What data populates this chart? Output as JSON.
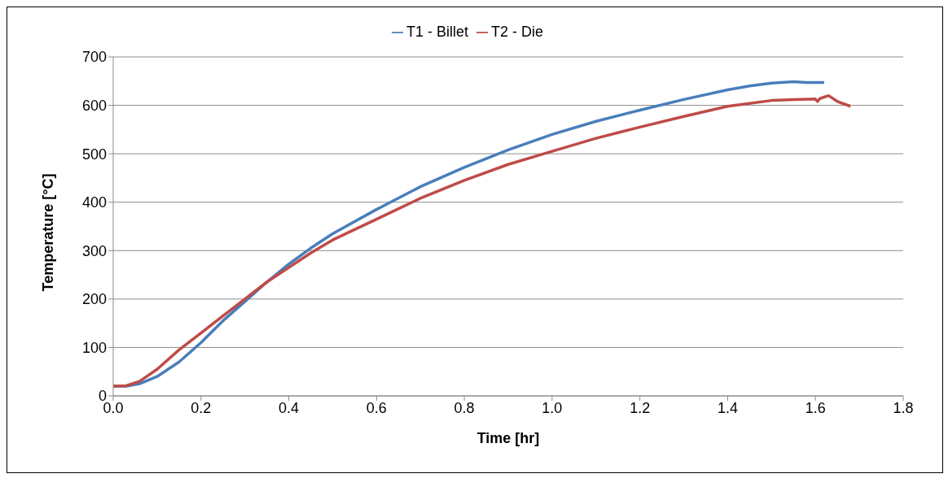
{
  "chart_data": {
    "type": "line",
    "xlabel": "Time [hr]",
    "ylabel": "Temperature [°C]",
    "xlim": [
      0,
      1.8
    ],
    "xticks": [
      {
        "value": 0,
        "label": "0.0"
      },
      {
        "value": 0.2,
        "label": "0.2"
      },
      {
        "value": 0.4,
        "label": "0.4"
      },
      {
        "value": 0.6,
        "label": "0.6"
      },
      {
        "value": 0.8,
        "label": "0.8"
      },
      {
        "value": 1,
        "label": "1.0"
      },
      {
        "value": 1.2,
        "label": "1.2"
      },
      {
        "value": 1.4,
        "label": "1.4"
      },
      {
        "value": 1.6,
        "label": "1.6"
      },
      {
        "value": 1.8,
        "label": "1.8"
      }
    ],
    "ylim": [
      0,
      700
    ],
    "yticks": [
      0,
      100,
      200,
      300,
      400,
      500,
      600,
      700
    ],
    "grid": "y",
    "legend": "top",
    "marker": "none",
    "line_style": "solid",
    "series": [
      {
        "name": "T1 - Billet",
        "color": "#4a7ebb",
        "x": [
          0,
          0.03,
          0.06,
          0.1,
          0.15,
          0.2,
          0.25,
          0.3,
          0.35,
          0.4,
          0.45,
          0.5,
          0.6,
          0.7,
          0.8,
          0.9,
          1.0,
          1.1,
          1.2,
          1.3,
          1.4,
          1.45,
          1.5,
          1.55,
          1.58,
          1.62
        ],
        "values": [
          20,
          20,
          25,
          40,
          70,
          110,
          155,
          195,
          235,
          272,
          305,
          335,
          385,
          432,
          472,
          508,
          540,
          567,
          590,
          612,
          632,
          640,
          646,
          649,
          647,
          647
        ]
      },
      {
        "name": "T2 - Die",
        "color": "#be4b48",
        "x": [
          0,
          0.03,
          0.06,
          0.1,
          0.15,
          0.2,
          0.25,
          0.3,
          0.35,
          0.4,
          0.45,
          0.5,
          0.6,
          0.7,
          0.8,
          0.9,
          1.0,
          1.1,
          1.2,
          1.3,
          1.4,
          1.5,
          1.55,
          1.6,
          1.605,
          1.61,
          1.63,
          1.65,
          1.68
        ],
        "values": [
          20,
          21,
          30,
          55,
          95,
          130,
          165,
          200,
          235,
          265,
          295,
          322,
          365,
          408,
          445,
          478,
          505,
          532,
          555,
          577,
          598,
          610,
          612,
          613,
          608,
          614,
          620,
          608,
          598
        ]
      }
    ]
  }
}
